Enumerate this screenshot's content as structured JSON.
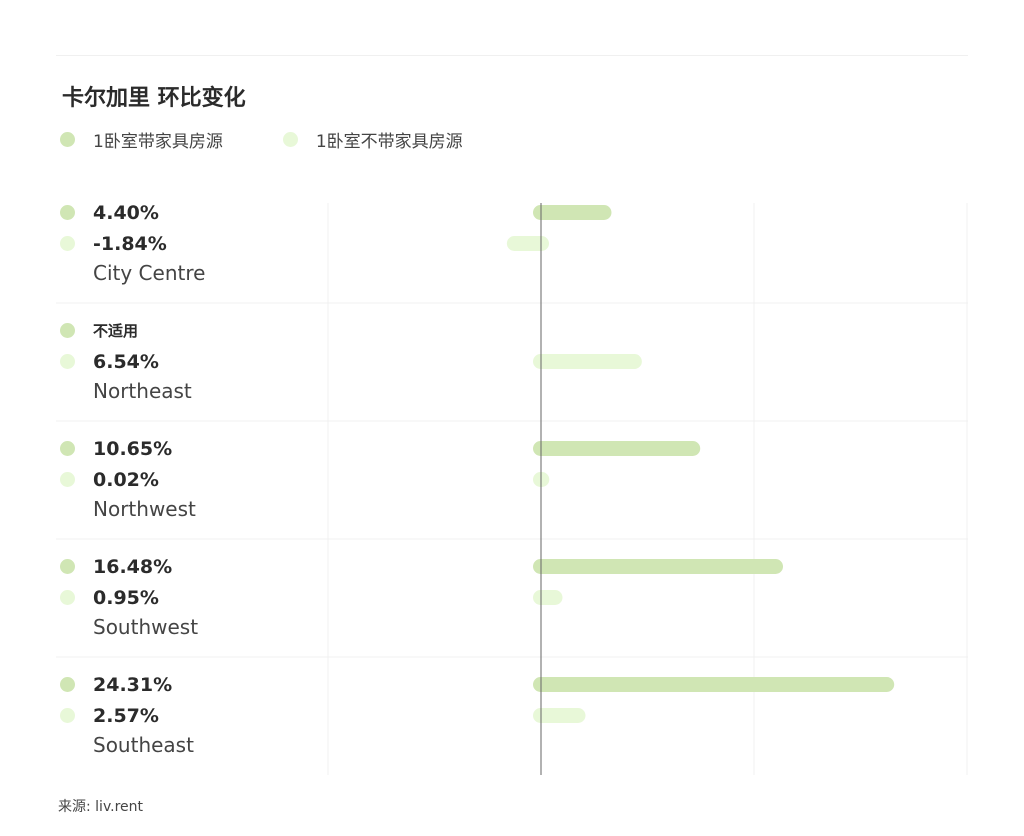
{
  "title": "卡尔加里 环比变化",
  "source": "来源: liv.rent",
  "chart_data": {
    "type": "bar",
    "orientation": "horizontal",
    "title": "卡尔加里 环比变化",
    "categories": [
      "City Centre",
      "Northeast",
      "Northwest",
      "Southwest",
      "Southeast"
    ],
    "series": [
      {
        "name": "1卧室带家具房源",
        "color": "#d0e6b4",
        "values": [
          4.4,
          null,
          10.65,
          16.48,
          24.31
        ],
        "labels": [
          "4.40%",
          "不适用",
          "10.65%",
          "16.48%",
          "24.31%"
        ]
      },
      {
        "name": "1卧室不带家具房源",
        "color": "#e8f8d8",
        "values": [
          -1.84,
          6.54,
          0.02,
          0.95,
          2.57
        ],
        "labels": [
          "-1.84%",
          "6.54%",
          "0.02%",
          "0.95%",
          "2.57%"
        ]
      }
    ],
    "xlim": [
      -15,
      30
    ],
    "gridlines": [
      -15,
      0,
      15,
      30
    ],
    "grid": true,
    "legend": "top-left"
  }
}
